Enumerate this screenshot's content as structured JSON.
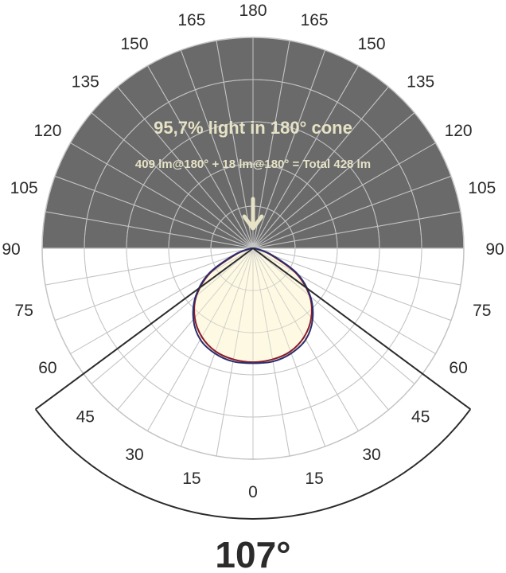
{
  "chart_data": {
    "type": "polar",
    "headline": "95,7% light in 180° cone",
    "flux_line": "409 lm@180° + 18 lm@180° = Total 428 lm",
    "beam_angle_label": "107°",
    "beam_angle": 107,
    "angle_ticks": [
      0,
      15,
      30,
      45,
      60,
      75,
      90,
      105,
      120,
      135,
      150,
      165,
      180
    ],
    "tick_labels": {
      "0": "0",
      "15": "15",
      "30": "30",
      "45": "45",
      "60": "60",
      "75": "75",
      "90": "90",
      "105": "105",
      "120": "120",
      "135": "135",
      "150": "150",
      "165": "165",
      "180": "180"
    },
    "rings": 5,
    "lower_hemisphere_fill": "#fdf9e2",
    "upper_hemisphere_fill": "#6a6a6a",
    "series": [
      {
        "color": "#8a1c2e",
        "angles": [
          0,
          10,
          20,
          30,
          40,
          50,
          60,
          70,
          80,
          90
        ],
        "values": [
          0.54,
          0.535,
          0.52,
          0.485,
          0.43,
          0.35,
          0.235,
          0.09,
          0.02,
          0.0
        ]
      },
      {
        "color": "#2a2d6e",
        "angles": [
          0,
          10,
          20,
          30,
          40,
          50,
          60,
          70,
          80,
          90
        ],
        "values": [
          0.545,
          0.545,
          0.53,
          0.5,
          0.44,
          0.355,
          0.245,
          0.1,
          0.022,
          0.0
        ]
      }
    ]
  },
  "colors": {
    "grid": "#c4c4c4",
    "axis_dark": "#2b2b2b",
    "arrow": "#e6e2c6",
    "text": "#2b2b2b"
  }
}
